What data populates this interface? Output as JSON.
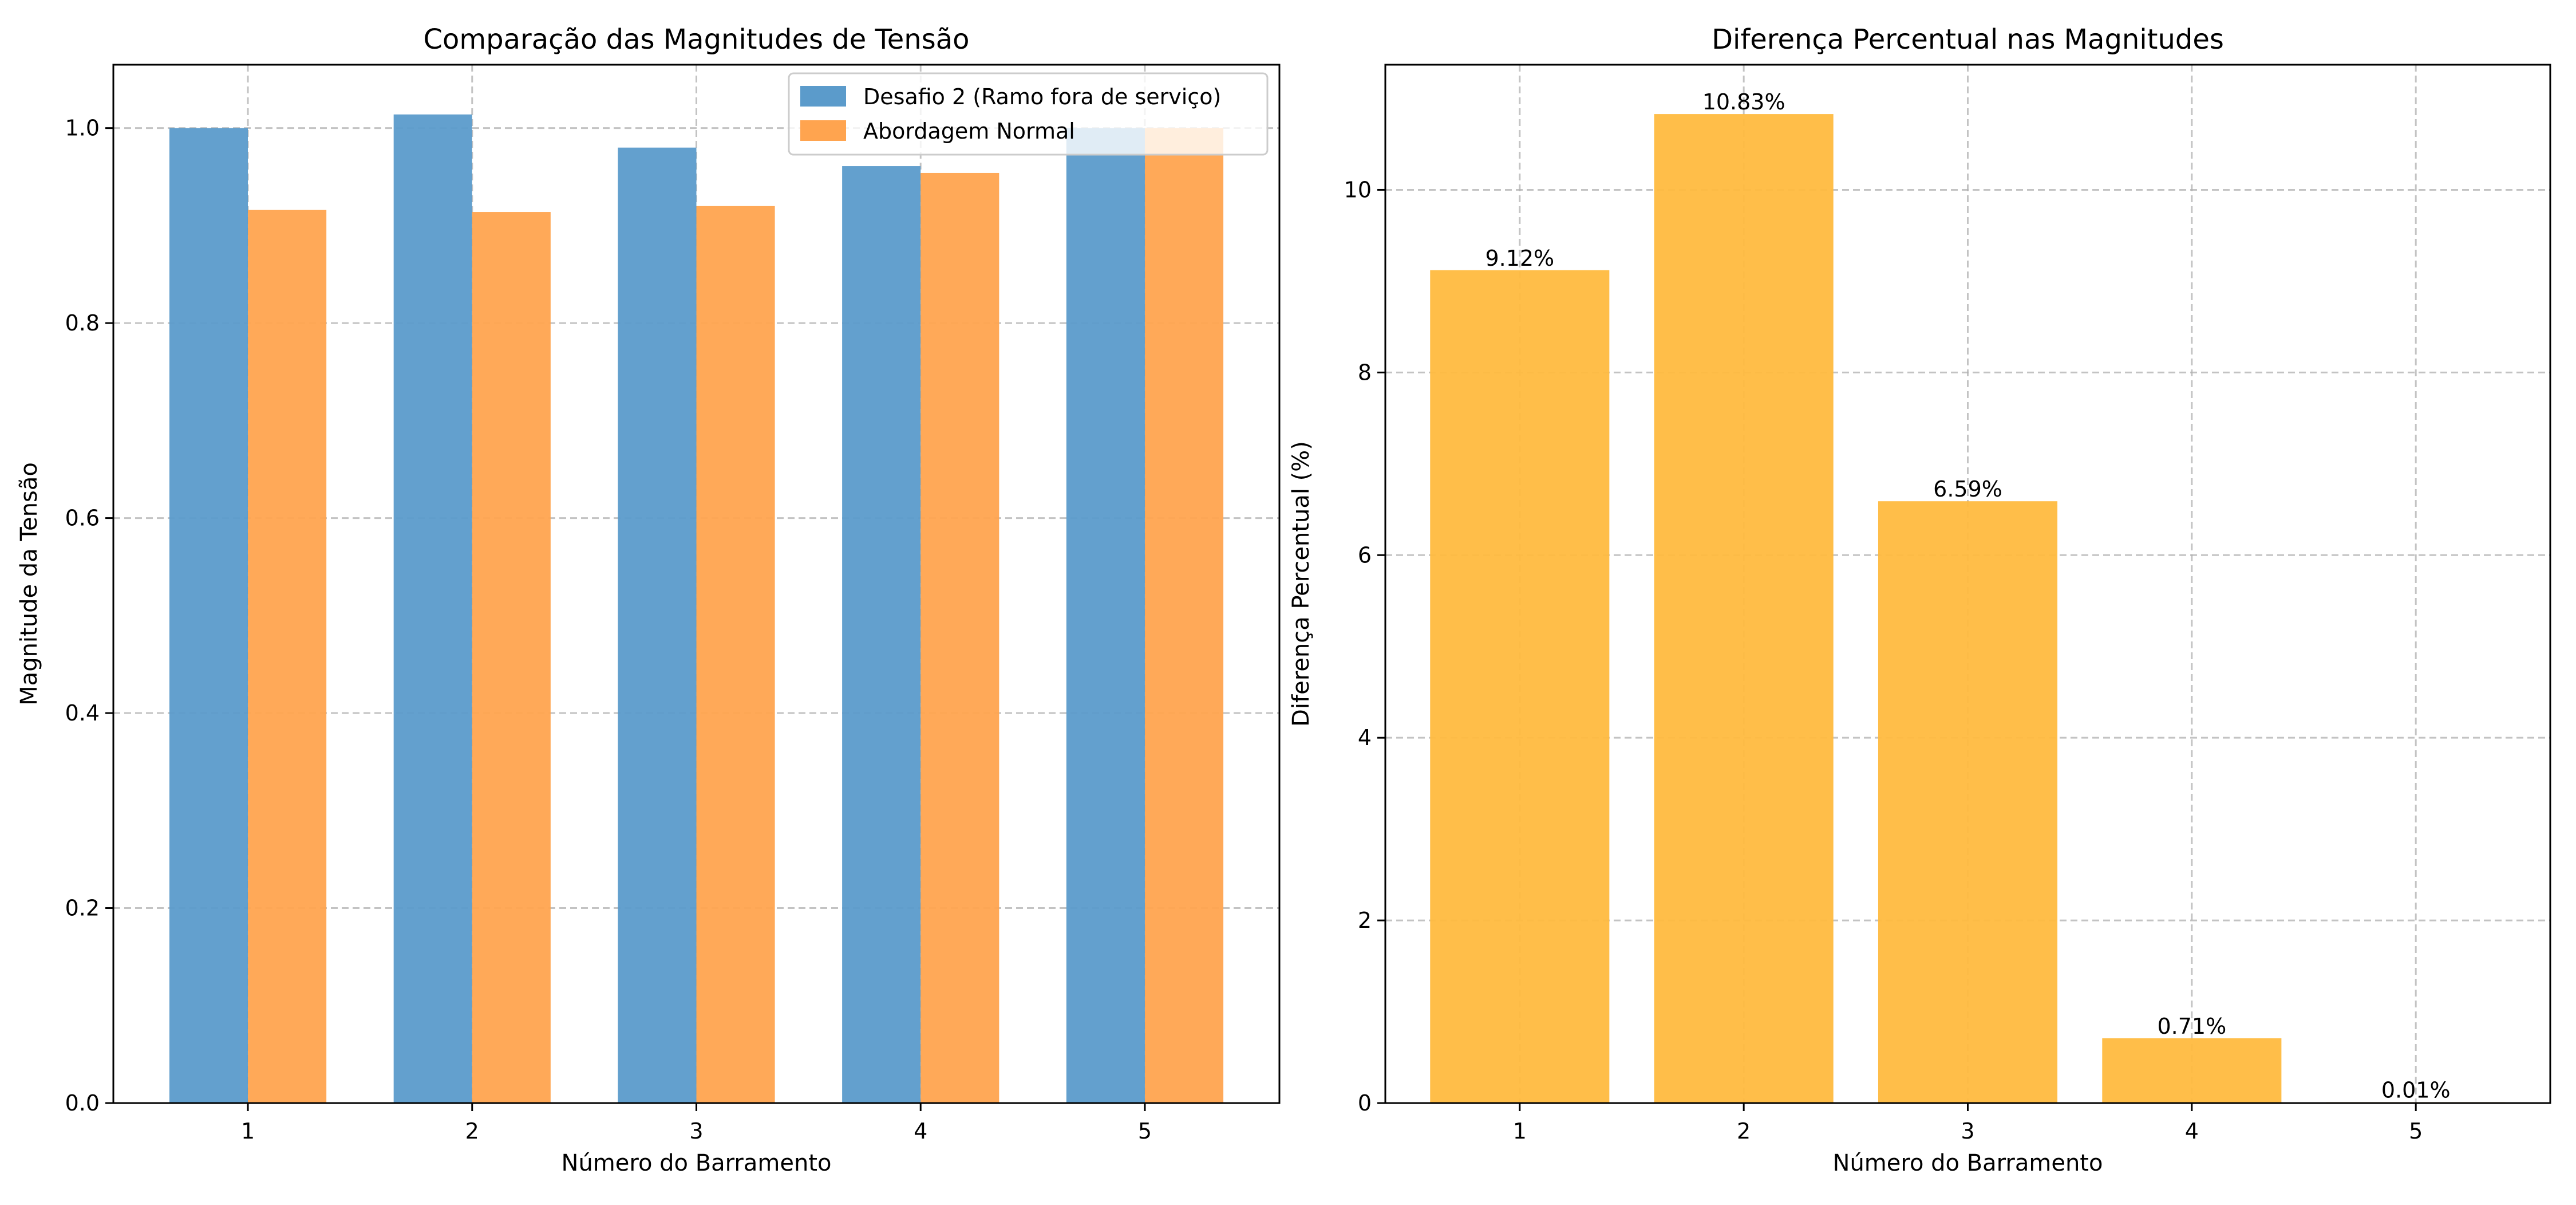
{
  "chart_data": [
    {
      "type": "bar",
      "title": "Comparação das Magnitudes de Tensão",
      "xlabel": "Número do Barramento",
      "ylabel": "Magnitude da Tensão",
      "categories": [
        "1",
        "2",
        "3",
        "4",
        "5"
      ],
      "series": [
        {
          "name": "Desafio 2 (Ramo fora de serviço)",
          "values": [
            1.0,
            1.014,
            0.98,
            0.961,
            1.0
          ],
          "color": "#5b9bcb"
        },
        {
          "name": "Abordagem Normal",
          "values": [
            0.916,
            0.914,
            0.92,
            0.954,
            1.0
          ],
          "color": "#ffa44f"
        }
      ],
      "ylim": [
        0,
        1.065
      ],
      "yticks": [
        0.0,
        0.2,
        0.4,
        0.6,
        0.8,
        1.0
      ],
      "ytick_labels": [
        "0.0",
        "0.2",
        "0.4",
        "0.6",
        "0.8",
        "1.0"
      ],
      "grid": true,
      "legend": "top-right"
    },
    {
      "type": "bar",
      "title": "Diferença Percentual nas Magnitudes",
      "xlabel": "Número do Barramento",
      "ylabel": "Diferença Percentual (%)",
      "categories": [
        "1",
        "2",
        "3",
        "4",
        "5"
      ],
      "values": [
        9.12,
        10.83,
        6.59,
        0.71,
        0.01
      ],
      "data_labels": [
        "9.12%",
        "10.83%",
        "6.59%",
        "0.71%",
        "0.01%"
      ],
      "color": "#ffbb3f",
      "ylim": [
        0,
        11.37
      ],
      "yticks": [
        0,
        2,
        4,
        6,
        8,
        10
      ],
      "ytick_labels": [
        "0",
        "2",
        "4",
        "6",
        "8",
        "10"
      ],
      "grid": true
    }
  ]
}
